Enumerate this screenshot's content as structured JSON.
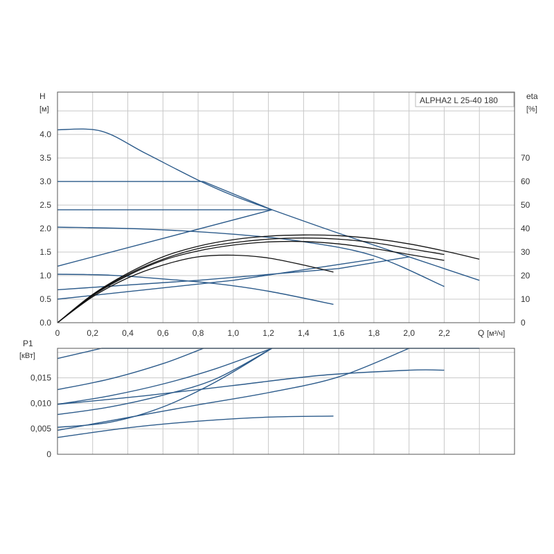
{
  "chart_data": [
    {
      "type": "line",
      "title": "ALPHA2 L 25-40 180",
      "ylabel": "H",
      "ylabel_unit": "[м]",
      "y2label": "eta",
      "y2label_unit": "[%]",
      "xlabel": "Q",
      "xlabel_unit": "[м³/ч]",
      "xlim": [
        0,
        2.6
      ],
      "ylim": [
        0,
        4.9
      ],
      "y2lim": [
        0,
        98
      ],
      "grid": true,
      "colors": {
        "curves": "#2b5a8a",
        "efficiency": "#111111",
        "grid": "#c8c8c8",
        "axis": "#555555"
      },
      "x_ticks": [
        "0",
        "0,2",
        "0,4",
        "0,6",
        "0,8",
        "1,0",
        "1,2",
        "1,4",
        "1,6",
        "1,8",
        "2,0",
        "2,2"
      ],
      "x_tick_values": [
        0,
        0.2,
        0.4,
        0.6,
        0.8,
        1.0,
        1.2,
        1.4,
        1.6,
        1.8,
        2.0,
        2.2
      ],
      "y_ticks": [
        "0.0",
        "0.5",
        "1.0",
        "1.5",
        "2.0",
        "2.5",
        "3.0",
        "3.5",
        "4.0"
      ],
      "y_tick_values": [
        0,
        0.5,
        1.0,
        1.5,
        2.0,
        2.5,
        3.0,
        3.5,
        4.0
      ],
      "y2_ticks": [
        "0",
        "10",
        "20",
        "30",
        "40",
        "50",
        "60",
        "70"
      ],
      "y2_tick_values": [
        0,
        10,
        20,
        30,
        40,
        50,
        60,
        70
      ],
      "series": [
        {
          "role": "head",
          "points": [
            [
              0,
              4.1
            ],
            [
              0.25,
              4.07
            ],
            [
              0.5,
              3.6
            ],
            [
              0.8,
              3.03
            ],
            [
              1.0,
              2.7
            ],
            [
              1.22,
              2.4
            ],
            [
              1.6,
              1.9
            ],
            [
              2.0,
              1.4
            ],
            [
              2.4,
              0.9
            ]
          ]
        },
        {
          "role": "head",
          "points": [
            [
              0,
              3.0
            ],
            [
              0.83,
              3.0
            ],
            [
              1.22,
              2.4
            ]
          ]
        },
        {
          "role": "head",
          "points": [
            [
              0,
              2.4
            ],
            [
              1.22,
              2.4
            ]
          ]
        },
        {
          "role": "head",
          "points": [
            [
              0,
              2.03
            ],
            [
              0.5,
              1.99
            ],
            [
              1.0,
              1.88
            ],
            [
              1.4,
              1.72
            ],
            [
              1.8,
              1.42
            ],
            [
              2.2,
              0.77
            ]
          ]
        },
        {
          "role": "head",
          "points": [
            [
              0,
              1.03
            ],
            [
              0.3,
              1.01
            ],
            [
              0.6,
              0.93
            ],
            [
              0.9,
              0.83
            ],
            [
              1.2,
              0.67
            ],
            [
              1.57,
              0.39
            ]
          ]
        },
        {
          "role": "system-curve",
          "points": [
            [
              0,
              1.2
            ],
            [
              1.22,
              2.4
            ]
          ]
        },
        {
          "role": "system-curve",
          "points": [
            [
              0,
              0.7
            ],
            [
              0.8,
              0.9
            ],
            [
              1.6,
              1.15
            ],
            [
              2.0,
              1.4
            ]
          ]
        },
        {
          "role": "system-curve",
          "points": [
            [
              0,
              0.5
            ],
            [
              1.0,
              0.9
            ],
            [
              1.8,
              1.35
            ]
          ]
        },
        {
          "role": "efficiency",
          "points": [
            [
              0,
              0
            ],
            [
              0.2,
              11
            ],
            [
              0.4,
              19
            ],
            [
              0.6,
              24.5
            ],
            [
              0.8,
              28
            ],
            [
              1.0,
              28.7
            ],
            [
              1.2,
              27.5
            ],
            [
              1.4,
              24.5
            ],
            [
              1.57,
              21.5
            ]
          ]
        },
        {
          "role": "efficiency",
          "points": [
            [
              0,
              0
            ],
            [
              0.2,
              11.5
            ],
            [
              0.4,
              20
            ],
            [
              0.6,
              26.5
            ],
            [
              0.8,
              30.5
            ],
            [
              1.0,
              33
            ],
            [
              1.2,
              34.3
            ],
            [
              1.4,
              34.5
            ],
            [
              1.6,
              33.5
            ],
            [
              1.8,
              31.5
            ],
            [
              2.0,
              29
            ],
            [
              2.2,
              26.5
            ]
          ]
        },
        {
          "role": "efficiency",
          "points": [
            [
              0,
              0
            ],
            [
              0.2,
              11.8
            ],
            [
              0.4,
              20.5
            ],
            [
              0.6,
              27
            ],
            [
              0.8,
              31.5
            ],
            [
              1.0,
              34
            ],
            [
              1.2,
              35.5
            ],
            [
              1.4,
              36
            ],
            [
              1.6,
              35.5
            ],
            [
              1.8,
              34
            ],
            [
              2.0,
              31.5
            ],
            [
              2.2,
              29
            ]
          ]
        },
        {
          "role": "efficiency",
          "points": [
            [
              0,
              0
            ],
            [
              0.2,
              12
            ],
            [
              0.4,
              21
            ],
            [
              0.6,
              28
            ],
            [
              0.8,
              32.5
            ],
            [
              1.0,
              35.3
            ],
            [
              1.2,
              36.8
            ],
            [
              1.4,
              37.3
            ],
            [
              1.6,
              37
            ],
            [
              1.8,
              35.7
            ],
            [
              2.0,
              33.5
            ],
            [
              2.2,
              30.5
            ],
            [
              2.4,
              27
            ]
          ]
        }
      ]
    },
    {
      "type": "line",
      "ylabel": "P1",
      "ylabel_unit": "[кВт]",
      "xlim": [
        0,
        2.6
      ],
      "ylim": [
        0,
        0.0208
      ],
      "grid": true,
      "y_ticks": [
        "0",
        "0,005",
        "0,010",
        "0,015"
      ],
      "y_tick_values": [
        0,
        0.005,
        0.01,
        0.015
      ],
      "series": [
        {
          "role": "power",
          "points": [
            [
              0,
              0.0188
            ],
            [
              0.25,
              0.0208
            ],
            [
              2.4,
              0.0208
            ]
          ]
        },
        {
          "role": "power",
          "points": [
            [
              0,
              0.0127
            ],
            [
              0.3,
              0.0148
            ],
            [
              0.6,
              0.0178
            ],
            [
              0.83,
              0.0208
            ]
          ]
        },
        {
          "role": "power",
          "points": [
            [
              0,
              0.0098
            ],
            [
              0.3,
              0.0115
            ],
            [
              0.6,
              0.0138
            ],
            [
              0.9,
              0.0168
            ],
            [
              1.22,
              0.0208
            ]
          ]
        },
        {
          "role": "power",
          "points": [
            [
              0,
              0.0078
            ],
            [
              0.3,
              0.0093
            ],
            [
              0.6,
              0.0116
            ],
            [
              0.9,
              0.0148
            ],
            [
              1.22,
              0.0208
            ]
          ]
        },
        {
          "role": "power",
          "points": [
            [
              0,
              0.0053
            ],
            [
              0.3,
              0.0063
            ],
            [
              0.6,
              0.0093
            ],
            [
              0.9,
              0.0142
            ],
            [
              1.22,
              0.0208
            ]
          ]
        },
        {
          "role": "power",
          "points": [
            [
              0,
              0.0047
            ],
            [
              0.4,
              0.0072
            ],
            [
              0.8,
              0.0097
            ],
            [
              1.2,
              0.0121
            ],
            [
              1.6,
              0.0152
            ],
            [
              2.0,
              0.0208
            ]
          ]
        },
        {
          "role": "power",
          "points": [
            [
              0,
              0.0098
            ],
            [
              0.5,
              0.0115
            ],
            [
              1.0,
              0.0135
            ],
            [
              1.5,
              0.0155
            ],
            [
              2.0,
              0.0165
            ],
            [
              2.2,
              0.0165
            ]
          ]
        },
        {
          "role": "power",
          "points": [
            [
              0,
              0.0033
            ],
            [
              0.4,
              0.0052
            ],
            [
              0.8,
              0.0065
            ],
            [
              1.2,
              0.0073
            ],
            [
              1.57,
              0.0075
            ]
          ]
        }
      ]
    }
  ]
}
